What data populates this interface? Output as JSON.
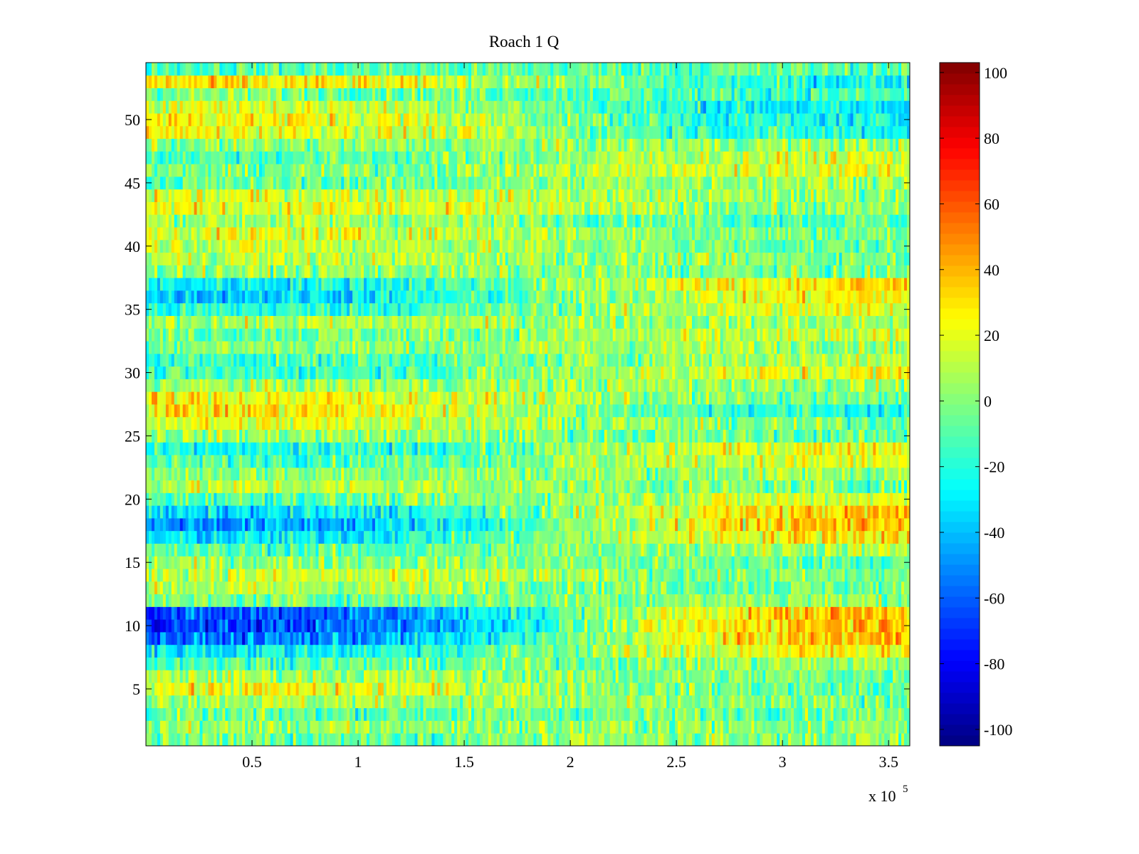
{
  "chart_data": {
    "type": "heatmap",
    "title": "Roach 1 Q",
    "xlabel": "",
    "ylabel": "",
    "x_multiplier_label": "x 10",
    "x_multiplier_exponent": "5",
    "xlim": [
      0,
      3.6
    ],
    "ylim": [
      0.5,
      54.5
    ],
    "x_ticks": [
      0.5,
      1,
      1.5,
      2,
      2.5,
      3,
      3.5
    ],
    "x_tick_labels": [
      "0.5",
      "1",
      "1.5",
      "2",
      "2.5",
      "3",
      "3.5"
    ],
    "y_ticks": [
      5,
      10,
      15,
      20,
      25,
      30,
      35,
      40,
      45,
      50
    ],
    "y_tick_labels": [
      "5",
      "10",
      "15",
      "20",
      "25",
      "30",
      "35",
      "40",
      "45",
      "50"
    ],
    "rows": 54,
    "colormap": "jet",
    "clim": [
      -105,
      103
    ],
    "colorbar_ticks": [
      100,
      80,
      60,
      40,
      20,
      0,
      -20,
      -40,
      -60,
      -80,
      -100
    ],
    "colorbar_tick_labels": [
      "100",
      "80",
      "60",
      "40",
      "20",
      "0",
      "-20",
      "-40",
      "-60",
      "-80",
      "-100"
    ],
    "row_profiles": [
      {
        "row": 1,
        "start": -5,
        "end": 2
      },
      {
        "row": 2,
        "start": 4,
        "end": 2
      },
      {
        "row": 3,
        "start": -8,
        "end": -2
      },
      {
        "row": 4,
        "start": 10,
        "end": -4
      },
      {
        "row": 5,
        "start": 24,
        "end": -10
      },
      {
        "row": 6,
        "start": 8,
        "end": -4
      },
      {
        "row": 7,
        "start": -10,
        "end": 5
      },
      {
        "row": 8,
        "start": -30,
        "end": 30
      },
      {
        "row": 9,
        "start": -60,
        "end": 45
      },
      {
        "row": 10,
        "start": -72,
        "end": 50
      },
      {
        "row": 11,
        "start": -68,
        "end": 48
      },
      {
        "row": 12,
        "start": -5,
        "end": 5
      },
      {
        "row": 13,
        "start": 10,
        "end": -6
      },
      {
        "row": 14,
        "start": 15,
        "end": -5
      },
      {
        "row": 15,
        "start": 5,
        "end": -8
      },
      {
        "row": 16,
        "start": -12,
        "end": 10
      },
      {
        "row": 17,
        "start": -35,
        "end": 35
      },
      {
        "row": 18,
        "start": -52,
        "end": 45
      },
      {
        "row": 19,
        "start": -38,
        "end": 40
      },
      {
        "row": 20,
        "start": -10,
        "end": 20
      },
      {
        "row": 21,
        "start": 12,
        "end": -5
      },
      {
        "row": 22,
        "start": 2,
        "end": 5
      },
      {
        "row": 23,
        "start": -12,
        "end": 20
      },
      {
        "row": 24,
        "start": -28,
        "end": 28
      },
      {
        "row": 25,
        "start": 5,
        "end": -8
      },
      {
        "row": 26,
        "start": 20,
        "end": -5
      },
      {
        "row": 27,
        "start": 32,
        "end": -25
      },
      {
        "row": 28,
        "start": 26,
        "end": -8
      },
      {
        "row": 29,
        "start": 5,
        "end": 5
      },
      {
        "row": 30,
        "start": -18,
        "end": 25
      },
      {
        "row": 31,
        "start": -15,
        "end": 12
      },
      {
        "row": 32,
        "start": 2,
        "end": 8
      },
      {
        "row": 33,
        "start": -5,
        "end": 12
      },
      {
        "row": 34,
        "start": 8,
        "end": 5
      },
      {
        "row": 35,
        "start": -22,
        "end": 22
      },
      {
        "row": 36,
        "start": -38,
        "end": 30
      },
      {
        "row": 37,
        "start": -30,
        "end": 35
      },
      {
        "row": 38,
        "start": 4,
        "end": -5
      },
      {
        "row": 39,
        "start": 12,
        "end": -2
      },
      {
        "row": 40,
        "start": 15,
        "end": -8
      },
      {
        "row": 41,
        "start": 20,
        "end": -4
      },
      {
        "row": 42,
        "start": 8,
        "end": -10
      },
      {
        "row": 43,
        "start": 22,
        "end": -2
      },
      {
        "row": 44,
        "start": 18,
        "end": 2
      },
      {
        "row": 45,
        "start": -8,
        "end": 10
      },
      {
        "row": 46,
        "start": -5,
        "end": 22
      },
      {
        "row": 47,
        "start": -12,
        "end": 18
      },
      {
        "row": 48,
        "start": 0,
        "end": 5
      },
      {
        "row": 49,
        "start": 25,
        "end": -25
      },
      {
        "row": 50,
        "start": 28,
        "end": -30
      },
      {
        "row": 51,
        "start": 22,
        "end": -35
      },
      {
        "row": 52,
        "start": 0,
        "end": -15
      },
      {
        "row": 53,
        "start": 30,
        "end": -28
      },
      {
        "row": 54,
        "start": -10,
        "end": -8
      }
    ]
  }
}
